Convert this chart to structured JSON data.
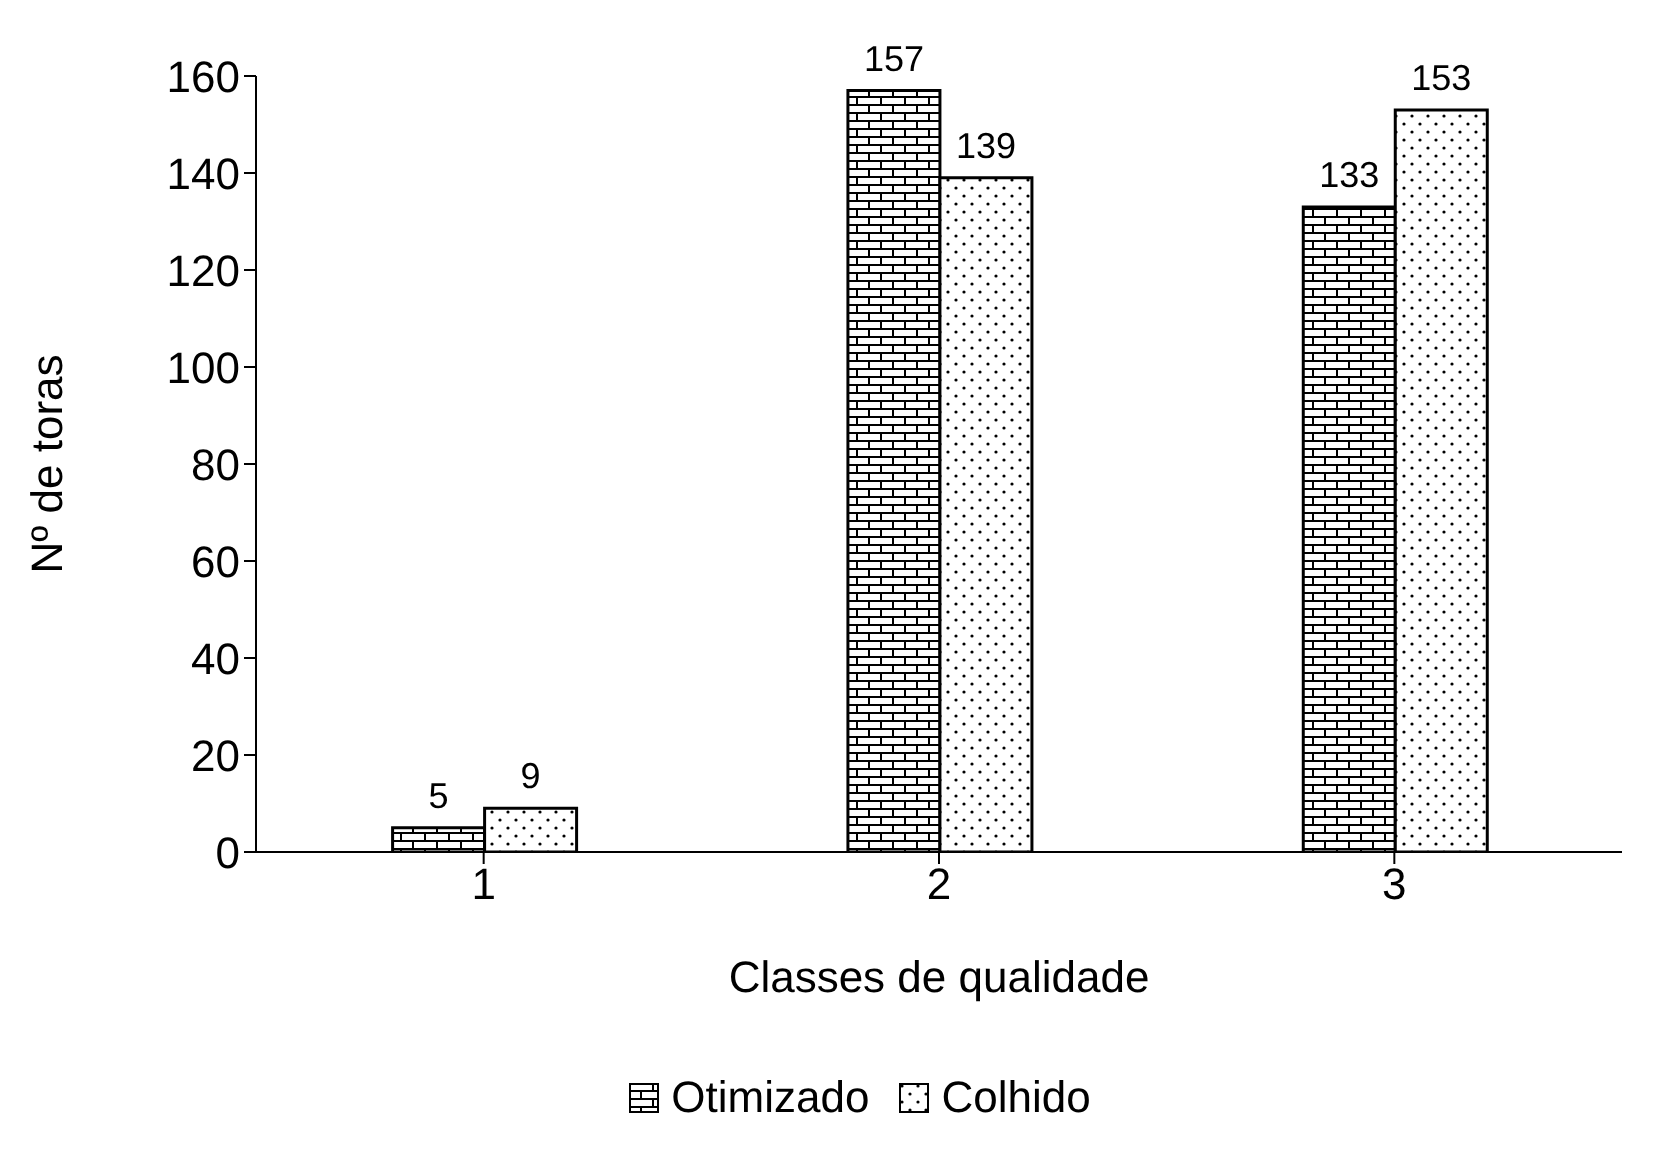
{
  "chart_data": {
    "type": "bar",
    "xlabel": "Classes de qualidade",
    "ylabel": "Nº de toras",
    "categories": [
      "1",
      "2",
      "3"
    ],
    "series": [
      {
        "name": "Otimizado",
        "color": "#000000",
        "values": [
          5,
          157,
          133
        ]
      },
      {
        "name": "Colhido",
        "color": "#000000",
        "values": [
          9,
          139,
          153
        ]
      }
    ],
    "ylim": [
      0,
      160
    ],
    "yticks": [
      0,
      20,
      40,
      60,
      80,
      100,
      120,
      140,
      160
    ],
    "grid": false,
    "legend": "bottom",
    "data_labels": true
  }
}
